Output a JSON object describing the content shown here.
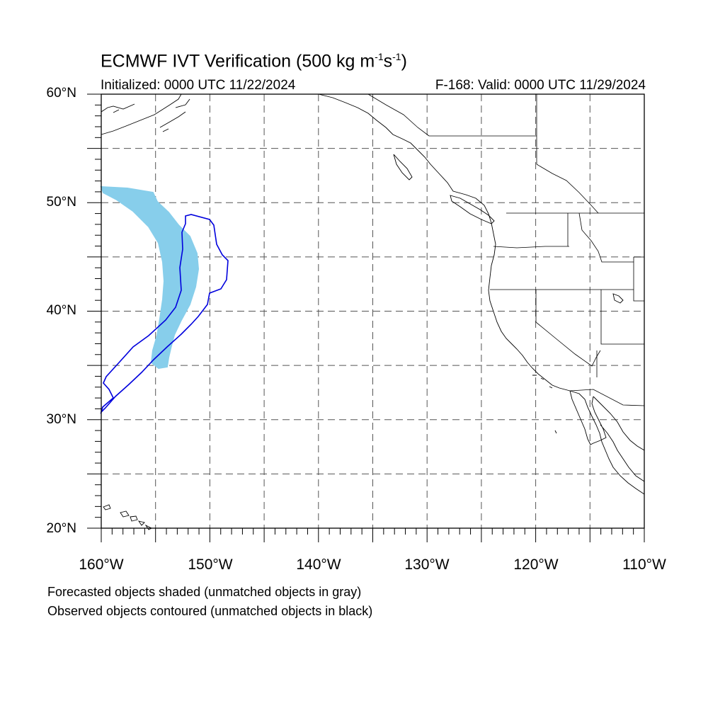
{
  "title": {
    "prefix": "ECMWF IVT Verification (500 kg m",
    "sup1": "-1",
    "mid": "s",
    "sup2": "-1",
    "suffix": ")"
  },
  "subtitle_left": "Initialized: 0000 UTC 11/22/2024",
  "subtitle_right": "F-168: Valid: 0000 UTC 11/29/2024",
  "lat_labels": [
    "60°N",
    "50°N",
    "40°N",
    "30°N",
    "20°N"
  ],
  "lon_labels": [
    "160°W",
    "150°W",
    "140°W",
    "130°W",
    "120°W",
    "110°W"
  ],
  "footnotes": [
    "Forecasted objects shaded (unmatched objects in gray)",
    "Observed objects contoured (unmatched objects in black)"
  ],
  "colors": {
    "forecast_fill": "#87CEEB",
    "observed_contour": "#0000DD",
    "grid": "#555555",
    "coast": "#000000"
  },
  "map": {
    "lon_range": [
      -160,
      -110
    ],
    "lat_range": [
      20,
      60
    ],
    "grid_spacing_deg": 5,
    "projection": "cylindrical-equidistant"
  }
}
